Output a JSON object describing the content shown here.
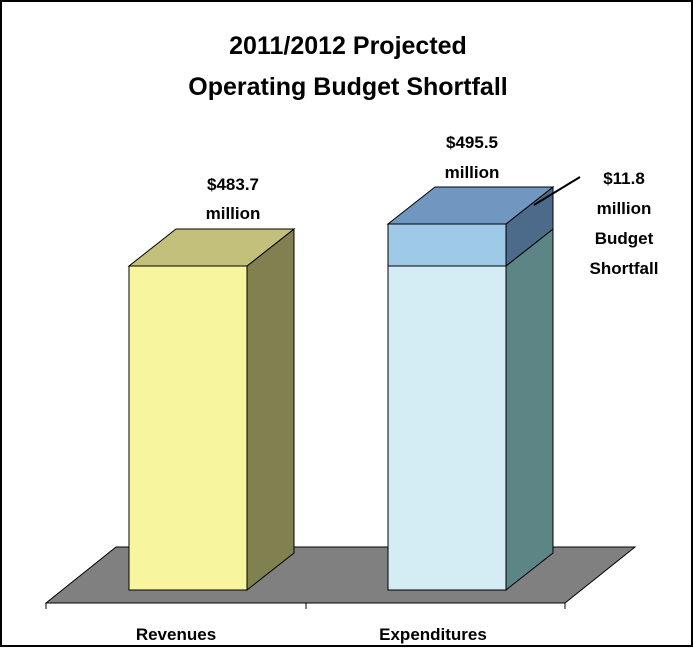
{
  "chart_data": {
    "type": "bar",
    "title": "2011/2012 Projected",
    "subtitle": "Operating Budget Shortfall",
    "categories": [
      "Revenues",
      "Expenditures"
    ],
    "series": [
      {
        "values": [
          483.7,
          483.7
        ]
      },
      {
        "values": [
          0,
          11.8
        ]
      }
    ],
    "unit": "$ million",
    "data_labels": [
      {
        "category": "Revenues",
        "lines": [
          "$483.7",
          "million"
        ]
      },
      {
        "category": "Expenditures",
        "lines": [
          "$495.5",
          "million"
        ]
      }
    ],
    "annotation": {
      "lines": [
        "$11.8",
        "million",
        "Budget",
        "Shortfall"
      ]
    },
    "ylim": [
      0,
      510
    ],
    "grid": false,
    "legend": "none",
    "colors": {
      "revenues_front": "#f7f59d",
      "revenues_side": "#808050",
      "revenues_top": "#c3c07b",
      "expenditures_front": "#d4ecf4",
      "expenditures_side": "#5e8585",
      "shortfall_front": "#9ecae8",
      "shortfall_side": "#4c6b8b",
      "shortfall_top": "#6f97bf",
      "floor": "#808080"
    }
  }
}
